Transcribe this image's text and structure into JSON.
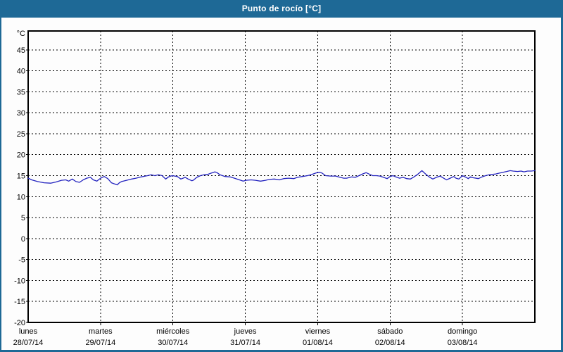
{
  "window": {
    "title": "Punto de rocío [°C]"
  },
  "colors": {
    "frame_blue": "#1e6996",
    "title_text": "#ffffff",
    "plot_background": "#fdfdfd",
    "grid": "#000000",
    "axis_text": "#000000",
    "line_blue": "#2323bf"
  },
  "chart_data": {
    "type": "line",
    "title": "Punto de rocío [°C]",
    "y_unit_label": "°C",
    "ylabel": "",
    "xlabel": "",
    "grid": "dashed",
    "legend_position": "none",
    "ylim": [
      -20,
      49.5
    ],
    "xlim_days": [
      0,
      7
    ],
    "y_ticks": [
      45,
      40,
      35,
      30,
      25,
      20,
      15,
      10,
      5,
      0,
      -5,
      -10,
      -15,
      -20
    ],
    "x_categories": [
      {
        "name": "lunes",
        "date": "28/07/14"
      },
      {
        "name": "martes",
        "date": "29/07/14"
      },
      {
        "name": "miércoles",
        "date": "30/07/14"
      },
      {
        "name": "jueves",
        "date": "31/07/14"
      },
      {
        "name": "viernes",
        "date": "01/08/14"
      },
      {
        "name": "sábado",
        "date": "02/08/14"
      },
      {
        "name": "domingo",
        "date": "03/08/14"
      }
    ],
    "series": [
      {
        "name": "Punto de rocío",
        "color": "#2323bf",
        "points": [
          [
            0.0,
            14.4
          ],
          [
            0.05,
            14.0
          ],
          [
            0.13,
            13.6
          ],
          [
            0.22,
            13.3
          ],
          [
            0.31,
            13.2
          ],
          [
            0.39,
            13.5
          ],
          [
            0.46,
            13.9
          ],
          [
            0.52,
            14.0
          ],
          [
            0.56,
            13.7
          ],
          [
            0.61,
            14.2
          ],
          [
            0.66,
            13.6
          ],
          [
            0.71,
            13.4
          ],
          [
            0.76,
            14.0
          ],
          [
            0.81,
            14.4
          ],
          [
            0.86,
            14.6
          ],
          [
            0.9,
            14.0
          ],
          [
            0.95,
            13.7
          ],
          [
            1.0,
            14.4
          ],
          [
            1.05,
            14.8
          ],
          [
            1.1,
            14.3
          ],
          [
            1.15,
            13.3
          ],
          [
            1.23,
            12.8
          ],
          [
            1.26,
            13.3
          ],
          [
            1.29,
            13.6
          ],
          [
            1.36,
            13.9
          ],
          [
            1.43,
            14.2
          ],
          [
            1.49,
            14.4
          ],
          [
            1.56,
            14.7
          ],
          [
            1.62,
            14.9
          ],
          [
            1.65,
            15.0
          ],
          [
            1.7,
            15.2
          ],
          [
            1.75,
            15.0
          ],
          [
            1.8,
            15.2
          ],
          [
            1.85,
            15.0
          ],
          [
            1.9,
            14.2
          ],
          [
            1.94,
            14.7
          ],
          [
            1.99,
            15.0
          ],
          [
            2.06,
            14.8
          ],
          [
            2.11,
            14.2
          ],
          [
            2.14,
            14.4
          ],
          [
            2.17,
            14.6
          ],
          [
            2.21,
            14.2
          ],
          [
            2.26,
            13.8
          ],
          [
            2.28,
            13.9
          ],
          [
            2.33,
            14.6
          ],
          [
            2.38,
            15.0
          ],
          [
            2.43,
            15.2
          ],
          [
            2.48,
            15.3
          ],
          [
            2.53,
            15.6
          ],
          [
            2.58,
            15.9
          ],
          [
            2.61,
            15.7
          ],
          [
            2.65,
            15.2
          ],
          [
            2.72,
            14.8
          ],
          [
            2.79,
            14.7
          ],
          [
            2.85,
            14.4
          ],
          [
            2.92,
            14.0
          ],
          [
            2.97,
            13.7
          ],
          [
            3.01,
            13.9
          ],
          [
            3.08,
            14.0
          ],
          [
            3.14,
            13.9
          ],
          [
            3.21,
            13.7
          ],
          [
            3.28,
            13.9
          ],
          [
            3.33,
            14.1
          ],
          [
            3.4,
            14.2
          ],
          [
            3.47,
            14.0
          ],
          [
            3.53,
            14.3
          ],
          [
            3.6,
            14.4
          ],
          [
            3.67,
            14.3
          ],
          [
            3.72,
            14.6
          ],
          [
            3.79,
            14.8
          ],
          [
            3.86,
            15.0
          ],
          [
            3.92,
            15.3
          ],
          [
            3.99,
            15.7
          ],
          [
            4.03,
            15.8
          ],
          [
            4.06,
            15.6
          ],
          [
            4.11,
            15.0
          ],
          [
            4.18,
            14.9
          ],
          [
            4.25,
            14.9
          ],
          [
            4.31,
            14.6
          ],
          [
            4.36,
            14.4
          ],
          [
            4.4,
            14.4
          ],
          [
            4.47,
            14.7
          ],
          [
            4.52,
            14.6
          ],
          [
            4.57,
            15.0
          ],
          [
            4.62,
            15.4
          ],
          [
            4.67,
            15.7
          ],
          [
            4.72,
            15.3
          ],
          [
            4.76,
            15.0
          ],
          [
            4.81,
            15.0
          ],
          [
            4.86,
            14.9
          ],
          [
            4.91,
            14.6
          ],
          [
            4.96,
            14.3
          ],
          [
            5.0,
            14.8
          ],
          [
            5.04,
            15.0
          ],
          [
            5.08,
            14.7
          ],
          [
            5.13,
            14.4
          ],
          [
            5.18,
            14.6
          ],
          [
            5.23,
            14.3
          ],
          [
            5.28,
            14.2
          ],
          [
            5.33,
            14.7
          ],
          [
            5.38,
            15.3
          ],
          [
            5.44,
            16.2
          ],
          [
            5.49,
            15.4
          ],
          [
            5.54,
            14.7
          ],
          [
            5.59,
            14.2
          ],
          [
            5.64,
            14.6
          ],
          [
            5.69,
            14.9
          ],
          [
            5.74,
            14.4
          ],
          [
            5.78,
            14.0
          ],
          [
            5.83,
            14.4
          ],
          [
            5.88,
            14.8
          ],
          [
            5.91,
            14.4
          ],
          [
            5.95,
            14.2
          ],
          [
            6.0,
            15.0
          ],
          [
            6.05,
            14.6
          ],
          [
            6.08,
            14.3
          ],
          [
            6.11,
            14.7
          ],
          [
            6.15,
            14.5
          ],
          [
            6.22,
            14.3
          ],
          [
            6.27,
            14.7
          ],
          [
            6.32,
            15.0
          ],
          [
            6.37,
            15.2
          ],
          [
            6.42,
            15.3
          ],
          [
            6.46,
            15.4
          ],
          [
            6.51,
            15.6
          ],
          [
            6.56,
            15.8
          ],
          [
            6.61,
            16.0
          ],
          [
            6.66,
            16.2
          ],
          [
            6.7,
            16.1
          ],
          [
            6.76,
            16.0
          ],
          [
            6.81,
            16.1
          ],
          [
            6.85,
            15.9
          ],
          [
            6.9,
            16.1
          ],
          [
            6.95,
            16.1
          ],
          [
            7.0,
            16.2
          ]
        ]
      }
    ]
  }
}
